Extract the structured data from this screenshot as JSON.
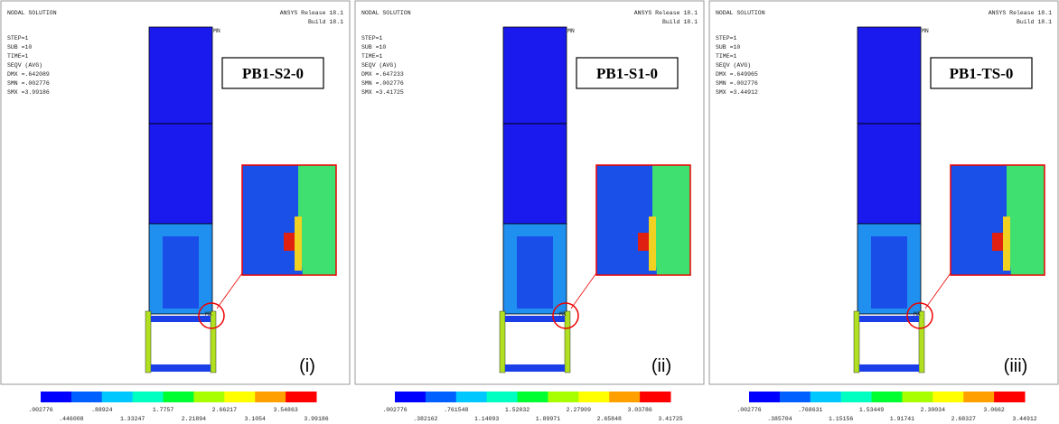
{
  "panels": [
    {
      "header": "NODAL SOLUTION",
      "info": [
        "STEP=1",
        "SUB =10",
        "TIME=1",
        "SEQV     (AVG)",
        "DMX =.642089",
        "SMN =.002776",
        "SMX =3.99186"
      ],
      "release": "ANSYS Release 18.1",
      "build": "Build 18.1",
      "mn": "MN",
      "mx": "MX",
      "label": "PB1-S2-0",
      "tag": "(i)",
      "scale_top": [
        ".002776",
        ".88924",
        "1.7757",
        "2.66217",
        "3.54863"
      ],
      "scale_bottom": [
        ".446008",
        "1.33247",
        "2.21894",
        "3.1054",
        "3.99186"
      ]
    },
    {
      "header": "NODAL SOLUTION",
      "info": [
        "STEP=1",
        "SUB =10",
        "TIME=1",
        "SEQV     (AVG)",
        "DMX =.647233",
        "SMN =.002776",
        "SMX =3.41725"
      ],
      "release": "ANSYS Release 18.1",
      "build": "Build 18.1",
      "mn": "MN",
      "mx": "MX",
      "label": "PB1-S1-0",
      "tag": "(ii)",
      "scale_top": [
        ".002776",
        ".761548",
        "1.52032",
        "2.27909",
        "3.03786"
      ],
      "scale_bottom": [
        ".382162",
        "1.14093",
        "1.89971",
        "2.65848",
        "3.41725"
      ]
    },
    {
      "header": "NODAL SOLUTION",
      "info": [
        "STEP=1",
        "SUB =10",
        "TIME=1",
        "SEQV     (AVG)",
        "DMX =.649965",
        "SMN =.002776",
        "SMX =3.44912"
      ],
      "release": "ANSYS Release 18.1",
      "build": "Build 18.1",
      "mn": "MN",
      "mx": "MX",
      "label": "PB1-TS-0",
      "tag": "(iii)",
      "scale_top": [
        ".002776",
        ".768631",
        "1.53449",
        "2.30034",
        "3.0662"
      ],
      "scale_bottom": [
        ".385704",
        "1.15156",
        "1.91741",
        "2.68327",
        "3.44912"
      ]
    }
  ]
}
